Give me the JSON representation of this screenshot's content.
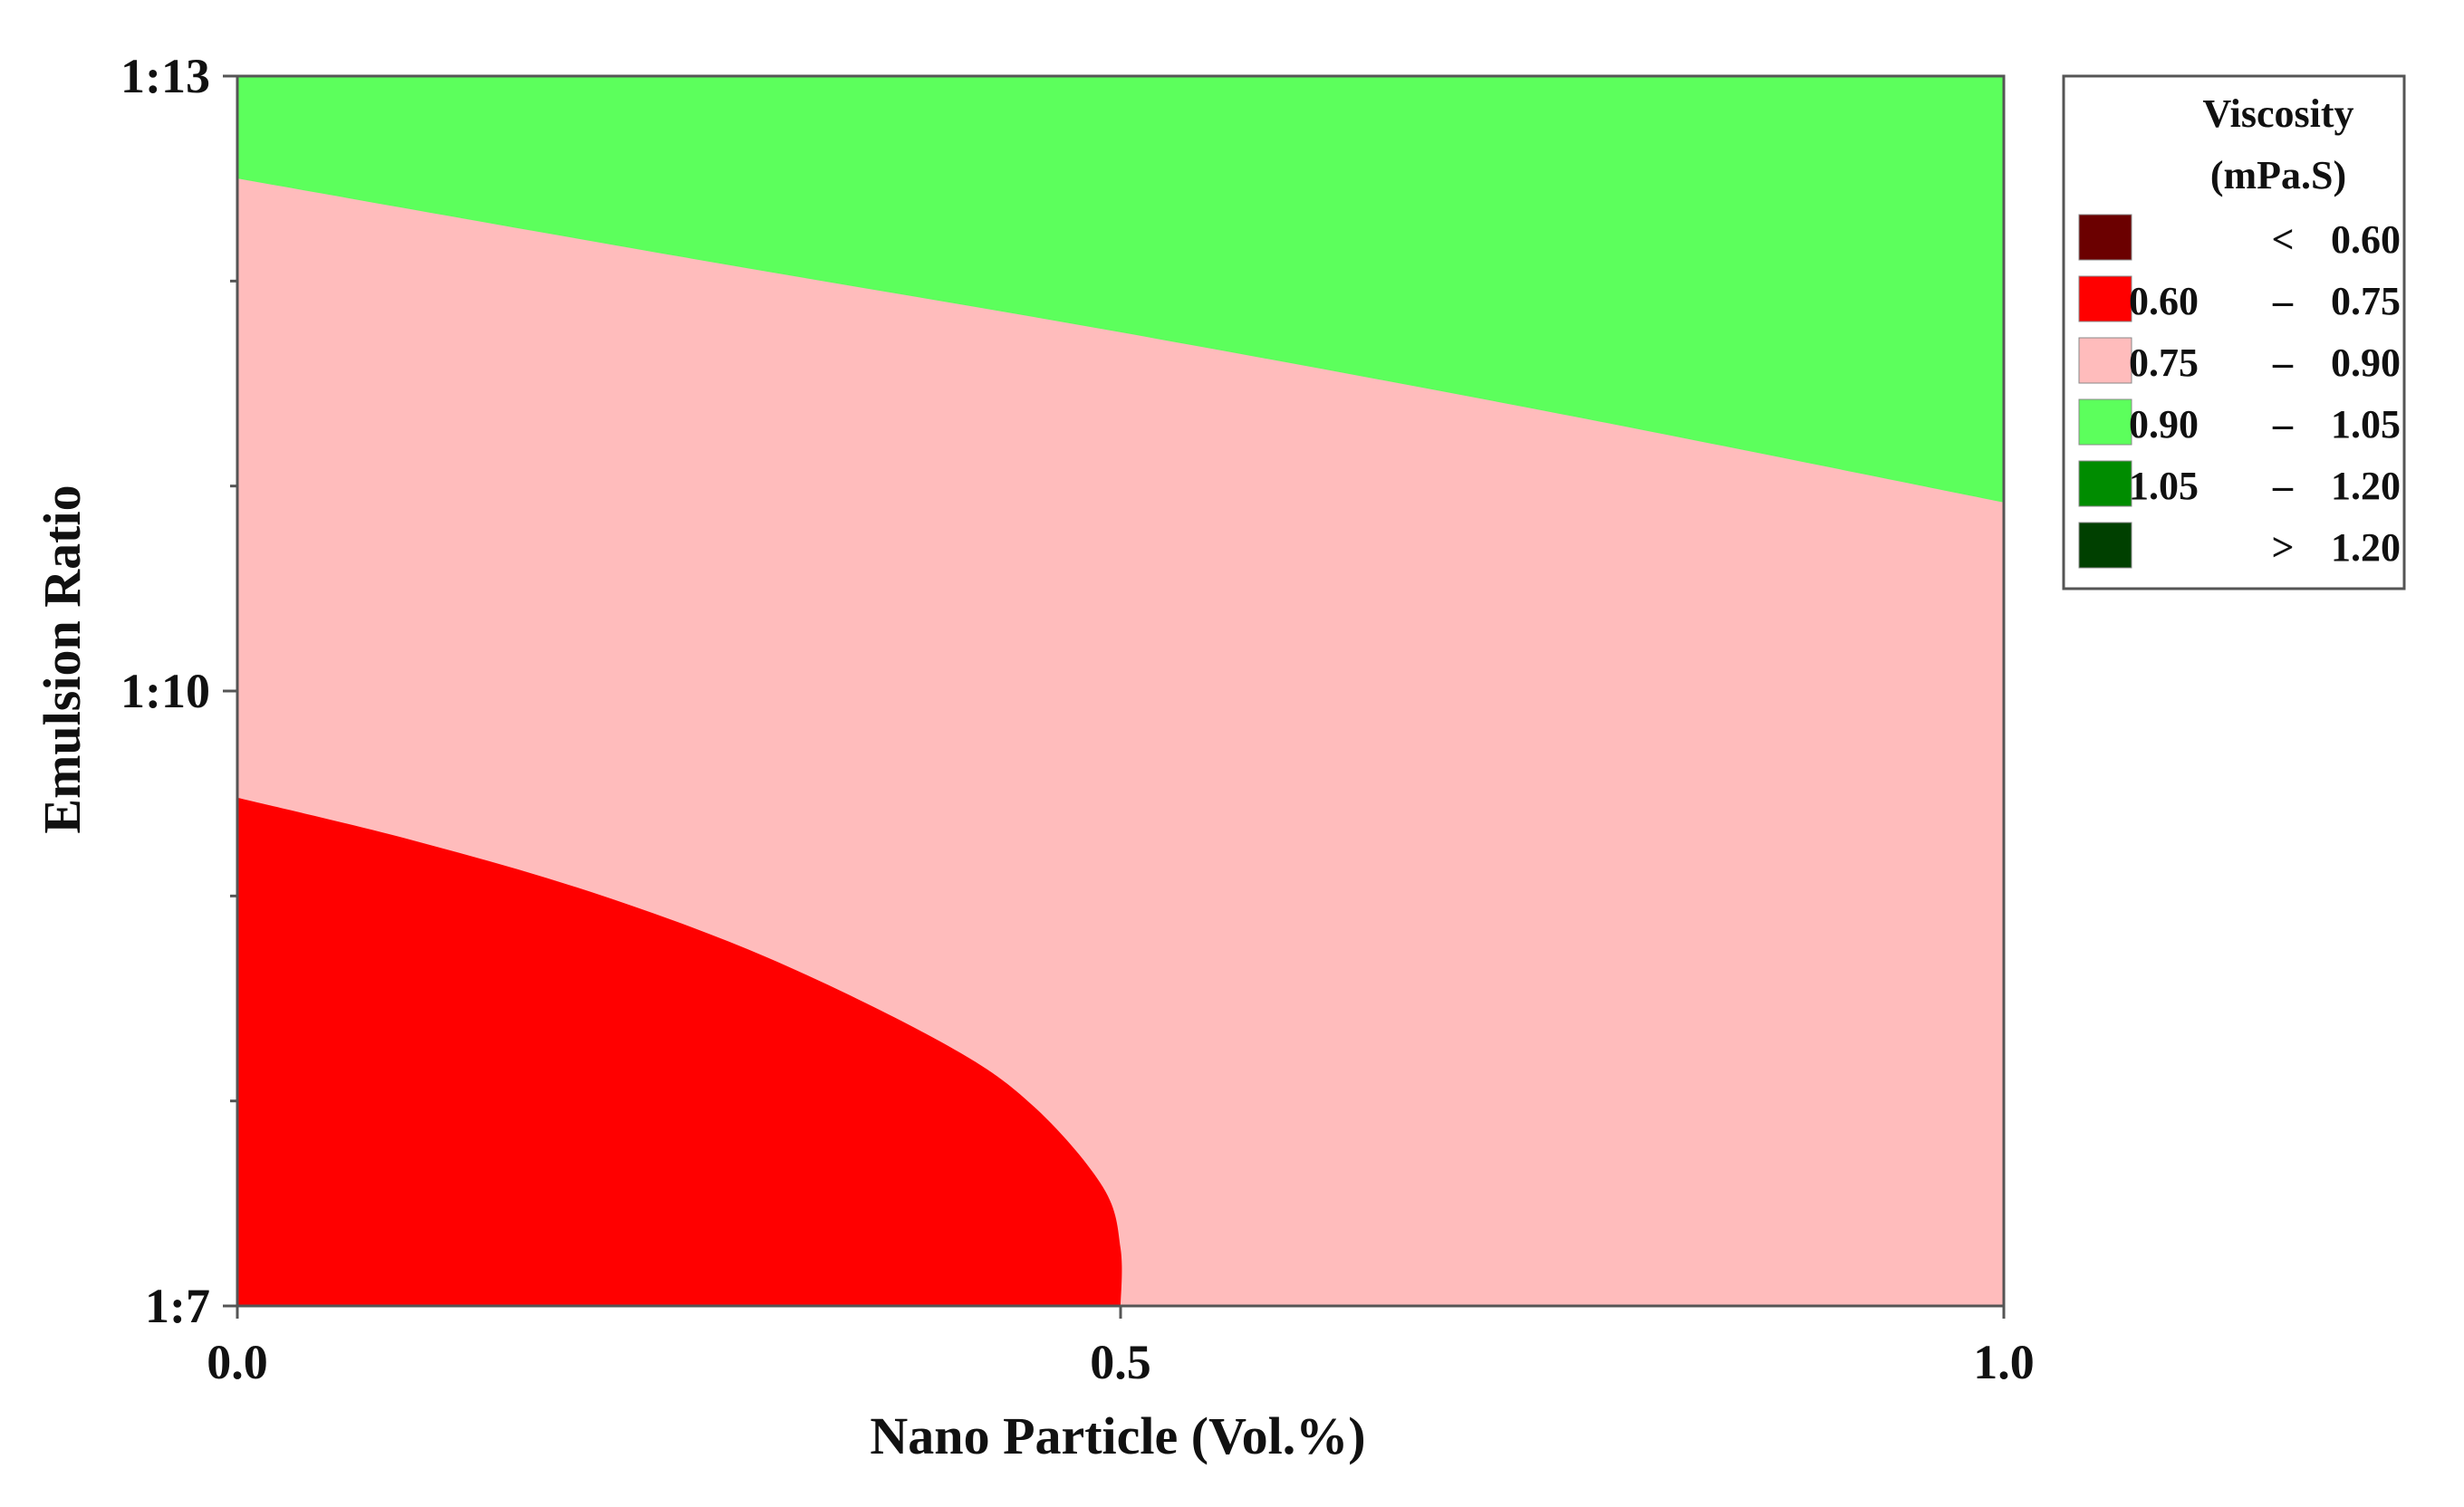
{
  "chart_data": {
    "type": "contour",
    "xlabel": "Nano Particle (Vol.%)",
    "ylabel": "Emulsion Ratio",
    "x_ticks": [
      "0.0",
      "0.5",
      "1.0"
    ],
    "x_tick_values": [
      0.0,
      0.5,
      1.0
    ],
    "xlim": [
      0.0,
      1.0
    ],
    "y_ticks": [
      "1:7",
      "1:10",
      "1:13"
    ],
    "y_tick_values": [
      7,
      10,
      13
    ],
    "ylim": [
      7,
      13
    ],
    "legend": {
      "title_line1": "Viscosity",
      "title_line2": "(mPa.S)",
      "placement": "right",
      "entries": [
        {
          "low": "",
          "sep": "<",
          "high": "0.60",
          "color": "#6b0000"
        },
        {
          "low": "0.60",
          "sep": "–",
          "high": "0.75",
          "color": "#ff0000"
        },
        {
          "low": "0.75",
          "sep": "–",
          "high": "0.90",
          "color": "#ffbcbc"
        },
        {
          "low": "0.90",
          "sep": "–",
          "high": "1.05",
          "color": "#5cff5c"
        },
        {
          "low": "1.05",
          "sep": "–",
          "high": "1.20",
          "color": "#008c00"
        },
        {
          "low": "",
          "sep": ">",
          "high": "1.20",
          "color": "#004000"
        }
      ]
    },
    "regions": [
      {
        "range": "0.90 – 1.05",
        "color": "#5cff5c",
        "lower_boundary": [
          [
            0.0,
            12.5
          ],
          [
            0.25,
            12.12
          ],
          [
            0.5,
            11.75
          ],
          [
            0.75,
            11.35
          ],
          [
            1.0,
            10.92
          ]
        ]
      },
      {
        "range": "0.75 – 0.90",
        "color": "#ffbcbc"
      },
      {
        "range": "0.60 – 0.75",
        "color": "#ff0000",
        "upper_boundary": [
          [
            0.0,
            9.48
          ],
          [
            0.1,
            9.27
          ],
          [
            0.2,
            9.02
          ],
          [
            0.3,
            8.7
          ],
          [
            0.4,
            8.28
          ],
          [
            0.45,
            7.98
          ],
          [
            0.49,
            7.58
          ],
          [
            0.5,
            7.28
          ],
          [
            0.5,
            7.0
          ]
        ]
      }
    ]
  }
}
